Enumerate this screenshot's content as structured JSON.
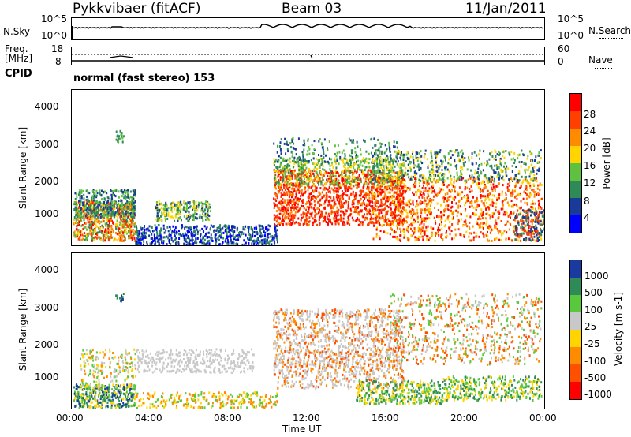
{
  "header": {
    "station": "Pykkvibaer (fitACF)",
    "beam": "Beam 03",
    "date": "11/Jan/2011"
  },
  "panels": {
    "nsky": {
      "left_label": "N.Sky",
      "right_label": "N.Search",
      "left_ticks": [
        "10^5",
        "10^0"
      ],
      "right_ticks": [
        "10^5",
        "10^0"
      ]
    },
    "freq": {
      "left_label": "Freq.",
      "left_unit": "[MHz]",
      "right_label": "Nave",
      "left_ticks": [
        "18",
        "8"
      ],
      "right_ticks": [
        "60",
        "0"
      ]
    },
    "cpid": {
      "label": "CPID",
      "text": "normal (fast stereo) 153"
    }
  },
  "chart_data": [
    {
      "type": "heatmap",
      "title": "Power",
      "ylabel": "Slant Range [km]",
      "xlabel": "",
      "ylim": [
        180,
        4500
      ],
      "yticks": [
        "4000",
        "3000",
        "2000",
        "1000"
      ],
      "colorbar": {
        "label": "Power [dB]",
        "ticks": [
          "28",
          "24",
          "20",
          "16",
          "12",
          "8",
          "4"
        ],
        "colors": [
          "#ff0000",
          "#ff4000",
          "#ff8c00",
          "#ffd400",
          "#60c040",
          "#2e8b57",
          "#1a3a9a",
          "#0000ff"
        ]
      }
    },
    {
      "type": "heatmap",
      "title": "Velocity",
      "ylabel": "Slant Range [km]",
      "xlabel": "Time UT",
      "ylim": [
        180,
        4500
      ],
      "yticks": [
        "4000",
        "3000",
        "2000",
        "1000"
      ],
      "xticks": [
        "00:00",
        "04:00",
        "08:00",
        "12:00",
        "16:00",
        "20:00",
        "00:00"
      ],
      "colorbar": {
        "label": "Velocity [m s-1]",
        "ticks": [
          "1000",
          "500",
          "100",
          "25",
          "-25",
          "-100",
          "-500",
          "-1000"
        ],
        "colors": [
          "#1a3aa0",
          "#2e8b57",
          "#5ac83c",
          "#c8c8c8",
          "#ffd400",
          "#ff8c00",
          "#ff5000",
          "#ff0000"
        ]
      }
    }
  ]
}
